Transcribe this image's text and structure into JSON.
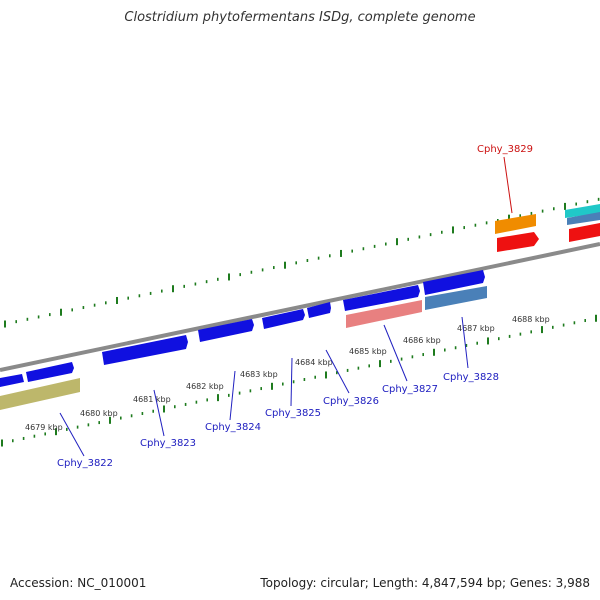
{
  "title": "Clostridium phytofermentans ISDg, complete genome",
  "footer": {
    "accession": "Accession: NC_010001",
    "summary": "Topology: circular; Length: 4,847,594 bp; Genes: 3,988"
  },
  "kbp_labels": [
    "4679 kbp",
    "4680 kbp",
    "4681 kbp",
    "4682 kbp",
    "4683 kbp",
    "4684 kbp",
    "4685 kbp",
    "4686 kbp",
    "4687 kbp",
    "4688 kbp"
  ],
  "gene_labels": [
    "Cphy_3822",
    "Cphy_3823",
    "Cphy_3824",
    "Cphy_3825",
    "Cphy_3826",
    "Cphy_3827",
    "Cphy_3828",
    "Cphy_3829"
  ],
  "colors": {
    "backbone": "#808080",
    "tick": "#1e7b1e",
    "gene_blue": "#1010e0",
    "label_blue": "#2020c0",
    "label_red": "#cc1111",
    "orange": "#f08c00",
    "red": "#ee1111",
    "pink": "#e88080",
    "steel": "#4a80b8",
    "khaki": "#bdb76b",
    "cyan": "#20c8c8"
  }
}
